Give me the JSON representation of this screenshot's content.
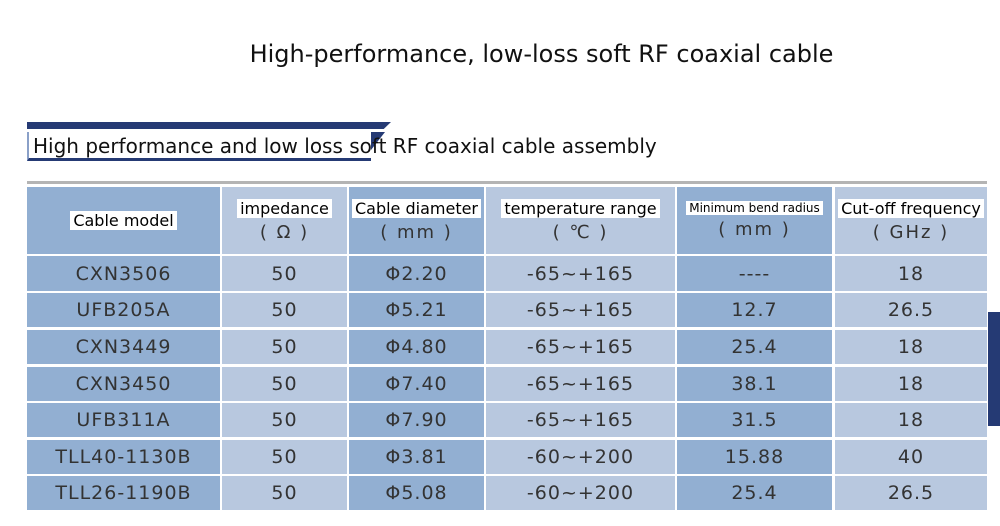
{
  "page_title": "High-performance, low-loss soft RF coaxial cable",
  "section_title": "High performance and low loss soft RF coaxial cable assembly",
  "headers": [
    {
      "label": "Cable model",
      "unit": ""
    },
    {
      "label": "impedance",
      "unit": "( Ω )"
    },
    {
      "label": "Cable diameter",
      "unit": "( mm )"
    },
    {
      "label": "temperature range",
      "unit": "( ℃ )"
    },
    {
      "label": "Minimum bend radius",
      "unit": "( mm )"
    },
    {
      "label": "Cut-off frequency",
      "unit": "( GHz )"
    }
  ],
  "rows": [
    [
      "CXN3506",
      "50",
      "Φ2.20",
      "-65~+165",
      "----",
      "18"
    ],
    [
      "UFB205A",
      "50",
      "Φ5.21",
      "-65~+165",
      "12.7",
      "26.5"
    ],
    [
      "CXN3449",
      "50",
      "Φ4.80",
      "-65~+165",
      "25.4",
      "18"
    ],
    [
      "CXN3450",
      "50",
      "Φ7.40",
      "-65~+165",
      "38.1",
      "18"
    ],
    [
      "UFB311A",
      "50",
      "Φ7.90",
      "-65~+165",
      "31.5",
      "18"
    ],
    [
      "TLL40-1130B",
      "50",
      "Φ3.81",
      "-60~+200",
      "15.88",
      "40"
    ],
    [
      "TLL26-1190B",
      "50",
      "Φ5.08",
      "-60~+200",
      "25.4",
      "26.5"
    ]
  ],
  "colors": {
    "dark_col": "#92afd2",
    "light_col": "#b8c8df",
    "accent": "#253a74"
  }
}
